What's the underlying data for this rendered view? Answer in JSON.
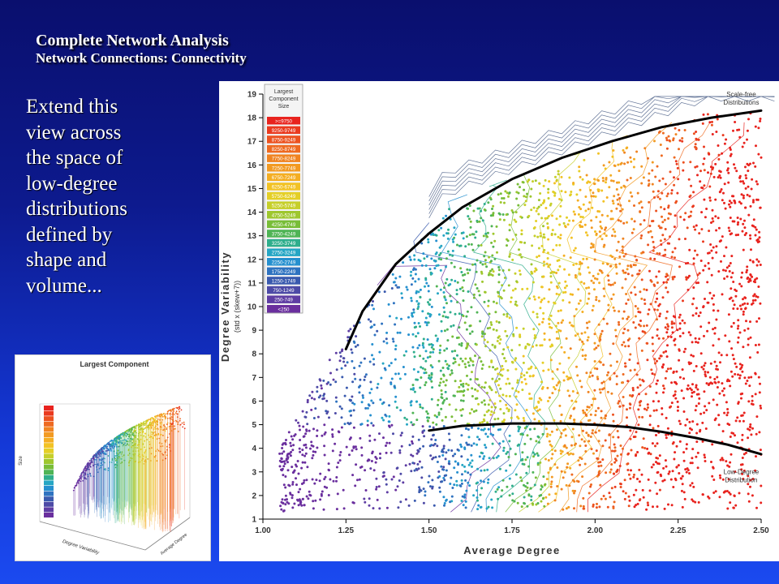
{
  "slide": {
    "title_line1": "Complete Network Analysis",
    "title_line2": "Network Connections: Connectivity",
    "body_lines": [
      "Extend this",
      "view across",
      "the space of",
      "low-degree",
      "distributions",
      "defined by",
      "shape and",
      "volume..."
    ]
  },
  "thumbnail": {
    "title": "Largest Component",
    "zlabel": "Size",
    "xlabel": "Degree Variability",
    "ylabel": "Average Degree"
  },
  "chart_data": {
    "type": "scatter",
    "xlabel": "Average Degree",
    "ylabel": "Degree Variability",
    "ylabel_sub": "(std x (skew+7))",
    "xlim": [
      1.0,
      2.5
    ],
    "ylim": [
      1,
      19
    ],
    "x_ticks": [
      "1.00",
      "1.25",
      "1.50",
      "1.75",
      "2.00",
      "2.25",
      "2.50"
    ],
    "y_ticks": [
      "1",
      "2",
      "3",
      "4",
      "5",
      "6",
      "7",
      "8",
      "9",
      "10",
      "11",
      "12",
      "13",
      "14",
      "15",
      "16",
      "17",
      "18",
      "19"
    ],
    "legend_title": [
      "Largest",
      "Component",
      "Size"
    ],
    "legend": [
      {
        "label": ">=9750",
        "color": "#e8231e"
      },
      {
        "label": "9250-9749",
        "color": "#ea3a1f"
      },
      {
        "label": "8750-9249",
        "color": "#ec5220"
      },
      {
        "label": "8250-8749",
        "color": "#ee6a21"
      },
      {
        "label": "7750-8249",
        "color": "#f08422"
      },
      {
        "label": "7250-7749",
        "color": "#f29a22"
      },
      {
        "label": "6750-7249",
        "color": "#f4ae23"
      },
      {
        "label": "6250-6749",
        "color": "#f2c224"
      },
      {
        "label": "5750-6249",
        "color": "#e4cf26"
      },
      {
        "label": "5250-5749",
        "color": "#c6cf2a"
      },
      {
        "label": "4750-5249",
        "color": "#9ec72e"
      },
      {
        "label": "4250-4749",
        "color": "#78bd38"
      },
      {
        "label": "3750-4249",
        "color": "#4fb455"
      },
      {
        "label": "3250-3749",
        "color": "#2fae8c"
      },
      {
        "label": "2750-3249",
        "color": "#26a6c4"
      },
      {
        "label": "2250-2749",
        "color": "#2690cf"
      },
      {
        "label": "1750-2249",
        "color": "#2f73c0"
      },
      {
        "label": "1250-1749",
        "color": "#3a5aae"
      },
      {
        "label": "750-1249",
        "color": "#4d4aa6"
      },
      {
        "label": "250-749",
        "color": "#5e3da3"
      },
      {
        "label": "<250",
        "color": "#6a2f9e"
      }
    ],
    "annotations": [
      {
        "text": [
          "Scale-free",
          "Distributions"
        ],
        "x": 2.44,
        "y": 18.9
      },
      {
        "text": [
          "Low-Degree",
          "Distribution"
        ],
        "x": 2.44,
        "y": 2.9
      }
    ],
    "curves": [
      {
        "name": "scale-free",
        "points": [
          [
            1.25,
            8.2
          ],
          [
            1.3,
            9.8
          ],
          [
            1.4,
            11.8
          ],
          [
            1.5,
            13.1
          ],
          [
            1.6,
            14.2
          ],
          [
            1.75,
            15.4
          ],
          [
            1.9,
            16.3
          ],
          [
            2.05,
            17.0
          ],
          [
            2.2,
            17.6
          ],
          [
            2.35,
            18.0
          ],
          [
            2.5,
            18.3
          ]
        ]
      },
      {
        "name": "low-degree",
        "points": [
          [
            1.5,
            4.75
          ],
          [
            1.6,
            4.95
          ],
          [
            1.75,
            5.05
          ],
          [
            1.9,
            5.05
          ],
          [
            2.0,
            5.0
          ],
          [
            2.1,
            4.9
          ],
          [
            2.2,
            4.7
          ],
          [
            2.3,
            4.45
          ],
          [
            2.4,
            4.15
          ],
          [
            2.5,
            3.75
          ]
        ]
      }
    ]
  }
}
